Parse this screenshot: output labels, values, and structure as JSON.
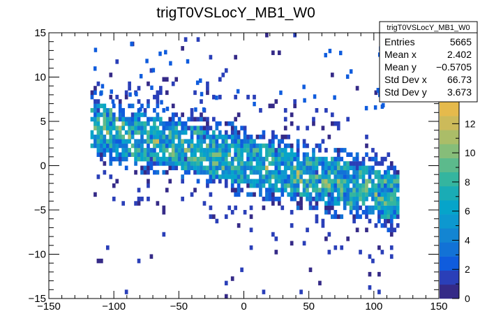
{
  "chart_data": {
    "type": "heatmap",
    "title": "trigT0VSLocY_MB1_W0",
    "xlabel": "",
    "ylabel": "",
    "xlim": [
      -150,
      150
    ],
    "ylim": [
      -15,
      15
    ],
    "x_ticks": [
      "−150",
      "−100",
      "−50",
      "0",
      "50",
      "100",
      "150"
    ],
    "x_tick_values": [
      -150,
      -100,
      -50,
      0,
      50,
      100,
      150
    ],
    "y_ticks": [
      "−15",
      "−10",
      "−5",
      "0",
      "5",
      "10",
      "15"
    ],
    "y_tick_values": [
      -15,
      -10,
      -5,
      0,
      5,
      10,
      15
    ],
    "colorbar": {
      "min": 0,
      "max": 13.5,
      "ticks": [
        "0",
        "2",
        "4",
        "6",
        "8",
        "10",
        "12"
      ],
      "tick_values": [
        0,
        2,
        4,
        6,
        8,
        10,
        12
      ],
      "colors": [
        "#352a87",
        "#2a3fb8",
        "#0f5cdd",
        "#1272d6",
        "#1385d2",
        "#0d98cf",
        "#06a4ca",
        "#1aacb5",
        "#34b59f",
        "#5cba8c",
        "#86bd79",
        "#abbd68",
        "#ccba5a",
        "#e5ba4c"
      ]
    },
    "band": {
      "description": "2D occupancy, dense band sloping from about y=+5 at x=-115 to y=-4 at x=115",
      "x_range": [
        -118,
        118
      ],
      "center_at_left": 4.5,
      "center_at_right": -3.6
    },
    "stats": {
      "name": "trigT0VSLocY_MB1_W0",
      "rows": [
        {
          "label": "Entries",
          "value": "5665"
        },
        {
          "label": "Mean x",
          "value": "2.402"
        },
        {
          "label": "Mean y",
          "value": "−0.5705"
        },
        {
          "label": "Std Dev x",
          "value": "66.73"
        },
        {
          "label": "Std Dev y",
          "value": "3.673"
        }
      ]
    }
  }
}
